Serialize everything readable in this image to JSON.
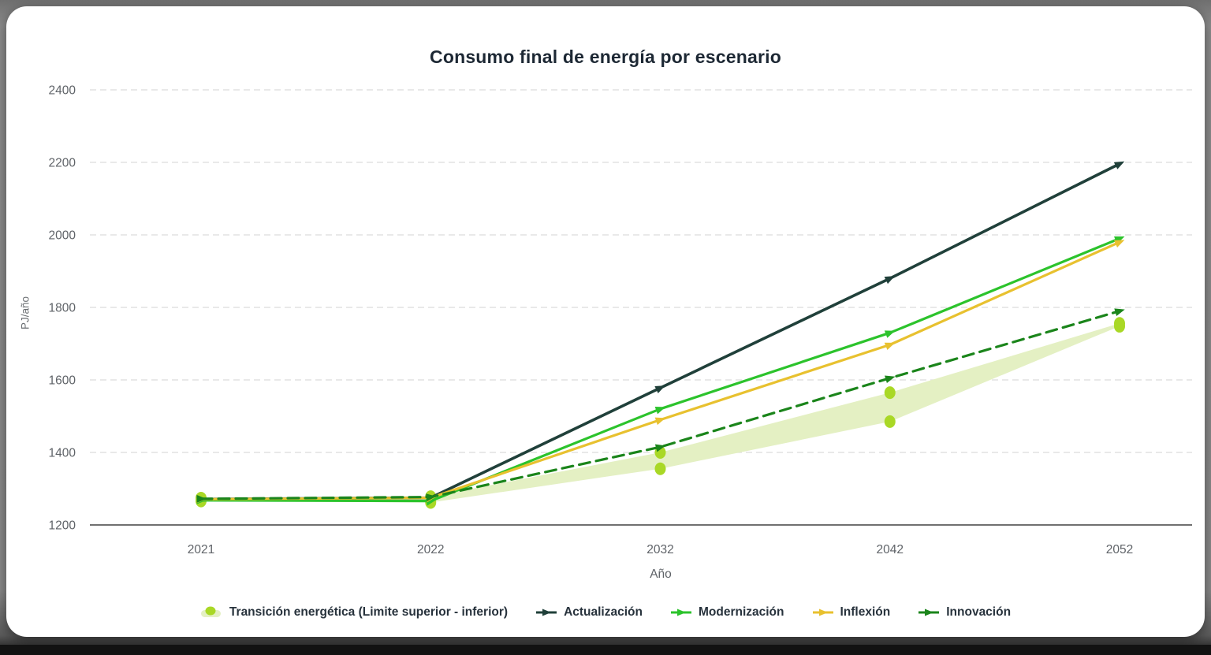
{
  "title": "Consumo final de energía por escenario",
  "chart_data": {
    "type": "line",
    "title": "Consumo final de energía por escenario",
    "xlabel": "Año",
    "ylabel": "PJ/año",
    "categories": [
      "2021",
      "2022",
      "2032",
      "2042",
      "2052"
    ],
    "yticks": [
      1200,
      1400,
      1600,
      1800,
      2000,
      2200,
      2400
    ],
    "ylim": [
      1200,
      2400
    ],
    "grid": "horizontal-dashed",
    "legend_position": "bottom-center",
    "band": {
      "name": "Transición energética (Limite superior - inferior)",
      "fill": "#e4f0c3",
      "marker_color": "#a9d826",
      "upper": [
        1274,
        1278,
        1400,
        1565,
        1756
      ],
      "lower": [
        1266,
        1262,
        1355,
        1485,
        1748
      ]
    },
    "series": [
      {
        "name": "Actualización",
        "color": "#20403a",
        "dash": "solid",
        "values": [
          1271,
          1275,
          1578,
          1880,
          2196
        ]
      },
      {
        "name": "Modernización",
        "color": "#2cc32c",
        "dash": "solid",
        "values": [
          1268,
          1266,
          1520,
          1730,
          1990
        ]
      },
      {
        "name": "Inflexión",
        "color": "#e8c12f",
        "dash": "solid",
        "values": [
          1271,
          1275,
          1490,
          1697,
          1980
        ]
      },
      {
        "name": "Innovación",
        "color": "#1b851b",
        "dash": "dashed",
        "values": [
          1272,
          1277,
          1415,
          1605,
          1790
        ]
      }
    ]
  }
}
